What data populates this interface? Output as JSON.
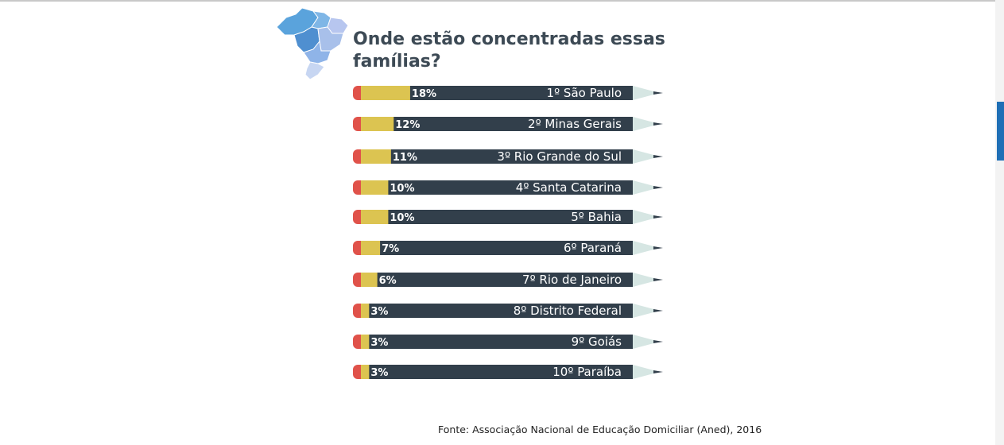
{
  "heading": "Onde estão concentradas essas famílias?",
  "source": "Fonte: Associação Nacional de Educação Domiciliar (Aned), 2016",
  "colors": {
    "barrel": "#323f4b",
    "fill": "#dcc451",
    "eraser": "#e0524a",
    "tip": "#d6e6e3",
    "text_light": "#ffffff"
  },
  "chart_data": {
    "type": "bar",
    "unit": "%",
    "categories": [
      "1º São Paulo",
      "2º Minas Gerais",
      "3º Rio Grande do Sul",
      "4º Santa Catarina",
      "5º Bahia",
      "6º Paraná",
      "7º Rio de Janeiro",
      "8º Distrito Federal",
      "9º Goiás",
      "10º Paraíba"
    ],
    "values": [
      18,
      12,
      11,
      10,
      10,
      7,
      6,
      3,
      3,
      3
    ],
    "value_labels": [
      "18%",
      "12%",
      "11%",
      "10%",
      "10%",
      "7%",
      "6%",
      "3%",
      "3%",
      "3%"
    ]
  }
}
